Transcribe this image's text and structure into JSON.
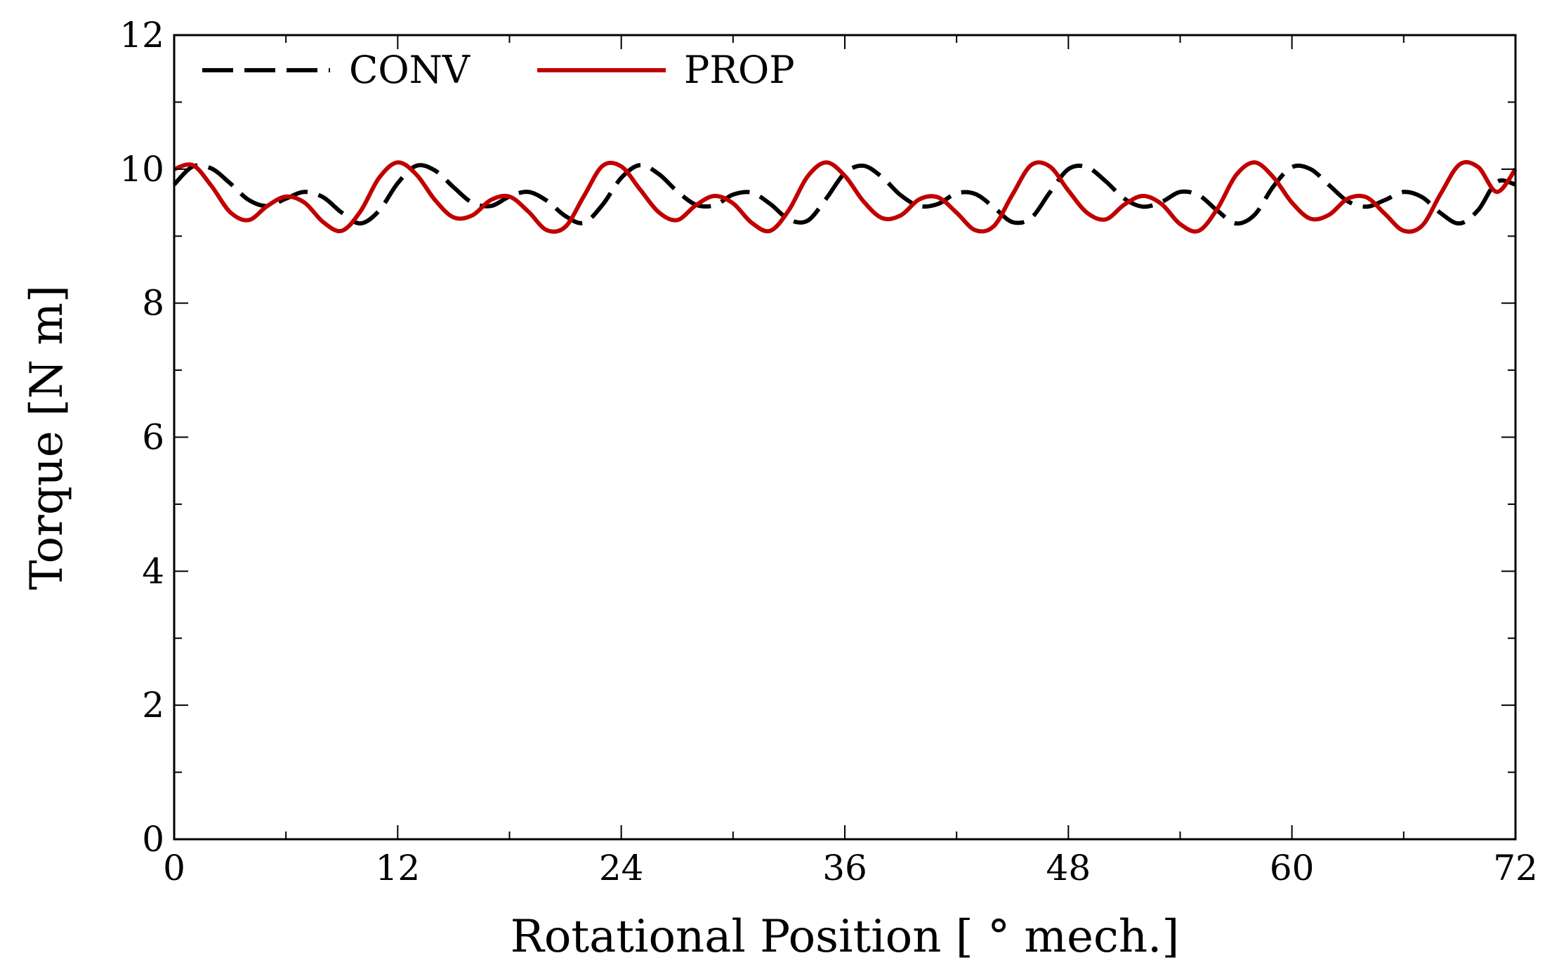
{
  "chart_data": {
    "type": "line",
    "title": "",
    "xlabel": "Rotational Position [ ° mech.]",
    "ylabel": "Torque [N m]",
    "xlim": [
      0,
      72
    ],
    "ylim": [
      0,
      12
    ],
    "xticks": [
      0,
      12,
      24,
      36,
      48,
      60,
      72
    ],
    "yticks": [
      0,
      2,
      4,
      6,
      8,
      10,
      12
    ],
    "xtick_labels": [
      "0",
      "12",
      "24",
      "36",
      "48",
      "60",
      "72"
    ],
    "ytick_labels": [
      "0",
      "2",
      "4",
      "6",
      "8",
      "10",
      "12"
    ],
    "grid": false,
    "legend_position": "top-left",
    "series": [
      {
        "name": "CONV",
        "style": "dashed",
        "color": "#000000",
        "x": [
          0,
          1,
          2,
          3,
          4,
          5,
          6,
          7,
          8,
          9,
          10,
          11,
          12,
          13,
          14,
          15,
          16,
          17,
          18,
          19,
          20,
          21,
          22,
          23,
          24,
          25,
          26,
          27,
          28,
          29,
          30,
          31,
          32,
          33,
          34,
          35,
          36,
          37,
          38,
          39,
          40,
          41,
          42,
          43,
          44,
          45,
          46,
          47,
          48,
          49,
          50,
          51,
          52,
          53,
          54,
          55,
          56,
          57,
          58,
          59,
          60,
          61,
          62,
          63,
          64,
          65,
          66,
          67,
          68,
          69,
          70,
          71,
          72
        ],
        "values": [
          9.77,
          10.04,
          10.01,
          9.79,
          9.54,
          9.45,
          9.56,
          9.66,
          9.58,
          9.35,
          9.19,
          9.38,
          9.79,
          10.05,
          9.98,
          9.73,
          9.5,
          9.45,
          9.59,
          9.66,
          9.53,
          9.3,
          9.2,
          9.47,
          9.87,
          10.06,
          9.93,
          9.67,
          9.47,
          9.46,
          9.62,
          9.65,
          9.48,
          9.25,
          9.23,
          9.56,
          9.94,
          10.05,
          9.88,
          9.61,
          9.45,
          9.48,
          9.64,
          9.63,
          9.43,
          9.21,
          9.27,
          9.65,
          10.0,
          10.03,
          9.82,
          9.56,
          9.44,
          9.51,
          9.66,
          9.61,
          9.38,
          9.19,
          9.32,
          9.74,
          10.03,
          10.0,
          9.76,
          9.52,
          9.44,
          9.54,
          9.66,
          9.58,
          9.34,
          9.19,
          9.39,
          9.81,
          9.77
        ]
      },
      {
        "name": "PROP",
        "style": "solid",
        "color": "#c00000",
        "x": [
          0,
          1,
          2,
          3,
          4,
          5,
          6,
          7,
          8,
          9,
          10,
          11,
          12,
          13,
          14,
          15,
          16,
          17,
          18,
          19,
          20,
          21,
          22,
          23,
          24,
          25,
          26,
          27,
          28,
          29,
          30,
          31,
          32,
          33,
          34,
          35,
          36,
          37,
          38,
          39,
          40,
          41,
          42,
          43,
          44,
          45,
          46,
          47,
          48,
          49,
          50,
          51,
          52,
          53,
          54,
          55,
          56,
          57,
          58,
          59,
          60,
          61,
          62,
          63,
          64,
          65,
          66,
          67,
          68,
          69,
          70,
          71,
          72
        ],
        "values": [
          10.0,
          10.06,
          9.75,
          9.36,
          9.24,
          9.45,
          9.59,
          9.5,
          9.21,
          9.08,
          9.37,
          9.87,
          10.1,
          9.92,
          9.54,
          9.28,
          9.31,
          9.54,
          9.59,
          9.37,
          9.09,
          9.14,
          9.6,
          10.05,
          10.04,
          9.7,
          9.36,
          9.24,
          9.46,
          9.6,
          9.49,
          9.2,
          9.08,
          9.39,
          9.89,
          10.1,
          9.9,
          9.52,
          9.27,
          9.31,
          9.55,
          9.58,
          9.35,
          9.09,
          9.15,
          9.62,
          10.06,
          10.04,
          9.68,
          9.35,
          9.25,
          9.47,
          9.6,
          9.48,
          9.18,
          9.08,
          9.41,
          9.91,
          10.1,
          9.88,
          9.5,
          9.26,
          9.32,
          9.56,
          9.58,
          9.33,
          9.08,
          9.16,
          9.64,
          10.07,
          10.03,
          9.66,
          10.0
        ]
      }
    ]
  }
}
